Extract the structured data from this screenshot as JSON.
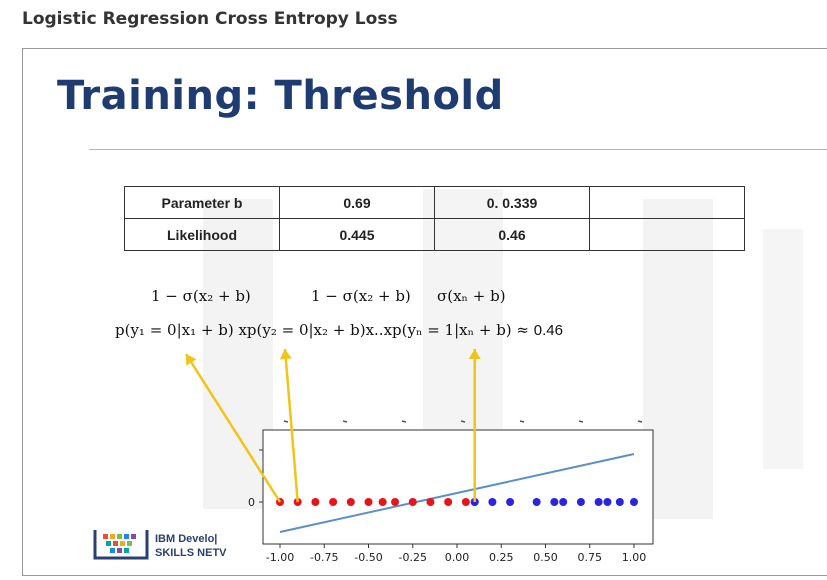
{
  "page": {
    "heading": "Logistic Regression Cross Entropy Loss"
  },
  "slide": {
    "title": "Training: Threshold",
    "table": {
      "rows": [
        {
          "label": "Parameter b",
          "cells": [
            "0.69",
            "0. 0.339",
            ""
          ]
        },
        {
          "label": "Likelihood",
          "cells": [
            "0.445",
            "0.46",
            ""
          ]
        }
      ]
    },
    "formula": {
      "sigma1": "1 − σ(x₂ + b)",
      "sigma2": "1 − σ(x₂ + b)",
      "sigma3": "σ(xₙ + b)",
      "likelihood": "p(y₁ = 0|x₁ + b) xp(y₂ = 0|x₂ + b)x..xp(yₙ = 1|xₙ + b) ≈ ",
      "result": "0.46"
    },
    "logo": {
      "line1": "IBM Develo|",
      "line2": "SKILLS NETV"
    }
  },
  "colors": {
    "title": "#1f3c72",
    "class0": "#e8141b",
    "class1": "#2a24e0",
    "line": "#5b8fc7",
    "arrow": "#f0c419"
  },
  "chart_data": {
    "type": "scatter",
    "xlim": [
      -1.05,
      1.05
    ],
    "xticks": [
      "-1.00",
      "-0.75",
      "-0.50",
      "-0.25",
      "0.00",
      "0.25",
      "0.50",
      "0.75",
      "1.00"
    ],
    "yticks": [
      "0"
    ],
    "series": [
      {
        "color": "#e8141b",
        "x": [
          -1.0,
          -0.9,
          -0.8,
          -0.7,
          -0.6,
          -0.5,
          -0.42,
          -0.35,
          -0.25,
          -0.15,
          -0.05,
          0.05,
          0.1
        ],
        "y": [
          0,
          0,
          0,
          0,
          0,
          0,
          0,
          0,
          0,
          0,
          0,
          0,
          0
        ]
      },
      {
        "color": "#2a24e0",
        "x": [
          0.1,
          0.2,
          0.3,
          0.45,
          0.55,
          0.6,
          0.7,
          0.8,
          0.85,
          0.92,
          1.0
        ],
        "y": [
          0,
          0,
          0,
          0,
          0,
          0,
          0,
          0,
          0,
          0,
          0
        ]
      }
    ],
    "line": {
      "x": [
        -1.0,
        1.0
      ],
      "y": [
        -0.5,
        0.8
      ]
    }
  }
}
